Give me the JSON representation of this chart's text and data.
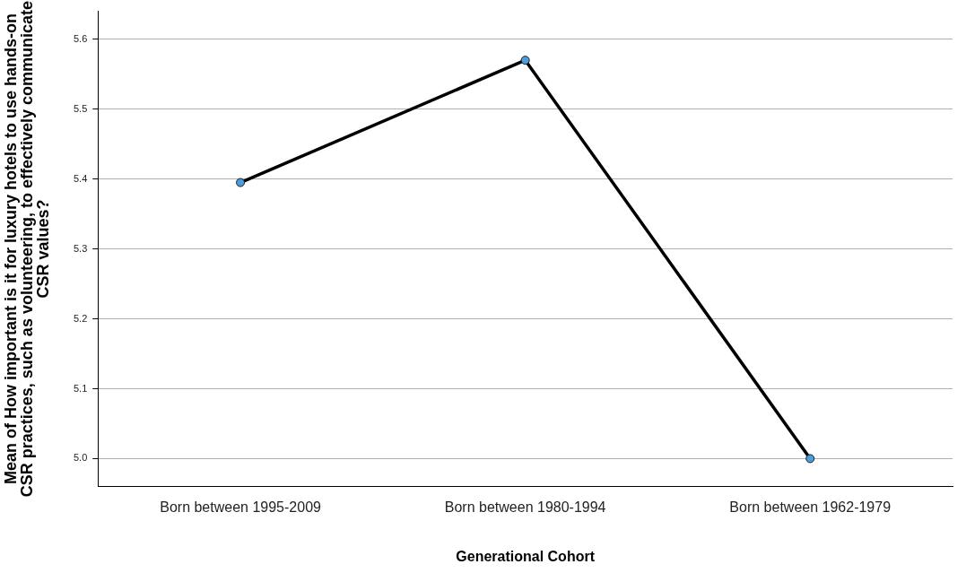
{
  "chart_data": {
    "type": "line",
    "xlabel": "Generational Cohort",
    "ylabel": "Mean of How important is it for luxury hotels to use hands-on CSR practices, such as volunteering, to effectively communicate CSR values?",
    "categories": [
      "Born between 1995-2009",
      "Born between 1980-1994",
      "Born between 1962-1979"
    ],
    "series": [
      {
        "color": "#000000",
        "values": [
          5.395,
          5.57,
          5.0
        ]
      }
    ],
    "ylim": [
      4.96,
      5.64
    ],
    "yticks": [
      {
        "value": 5.0,
        "label": "5.0"
      },
      {
        "value": 5.1,
        "label": "5.1"
      },
      {
        "value": 5.2,
        "label": "5.2"
      },
      {
        "value": 5.3,
        "label": "5.3"
      },
      {
        "value": 5.4,
        "label": "5.4"
      },
      {
        "value": 5.5,
        "label": "5.5"
      },
      {
        "value": 5.6,
        "label": "5.6"
      }
    ],
    "grid": "y",
    "legend": false,
    "marker": "circle",
    "line_style": "solid"
  }
}
